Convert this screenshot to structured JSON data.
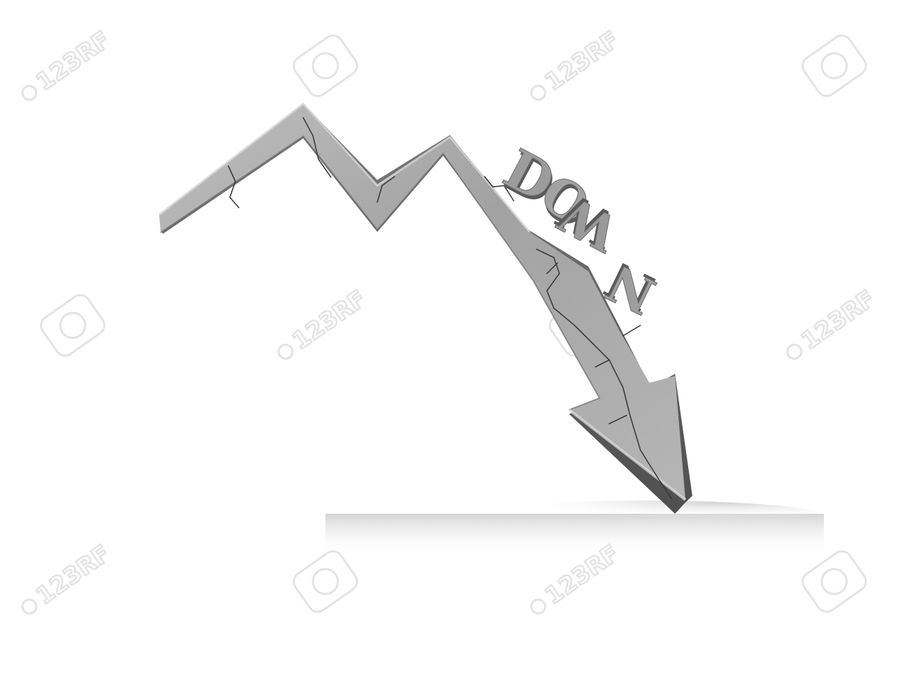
{
  "headline": {
    "letters": [
      "D",
      "O",
      "W",
      "N"
    ]
  },
  "watermark": {
    "text": "123RF"
  },
  "colors": {
    "background": "#ffffff",
    "concrete_light": "#b9b9b9",
    "concrete_mid": "#8f8f8f",
    "concrete_dark": "#5e5e5e",
    "crack": "#3a3a3a",
    "shadow": "#d4d4d4",
    "watermark": "#e3e3e3"
  },
  "icons": {
    "arrow": "falling-zigzag-arrow-icon",
    "watermark": "camera-aperture-watermark-icon"
  }
}
